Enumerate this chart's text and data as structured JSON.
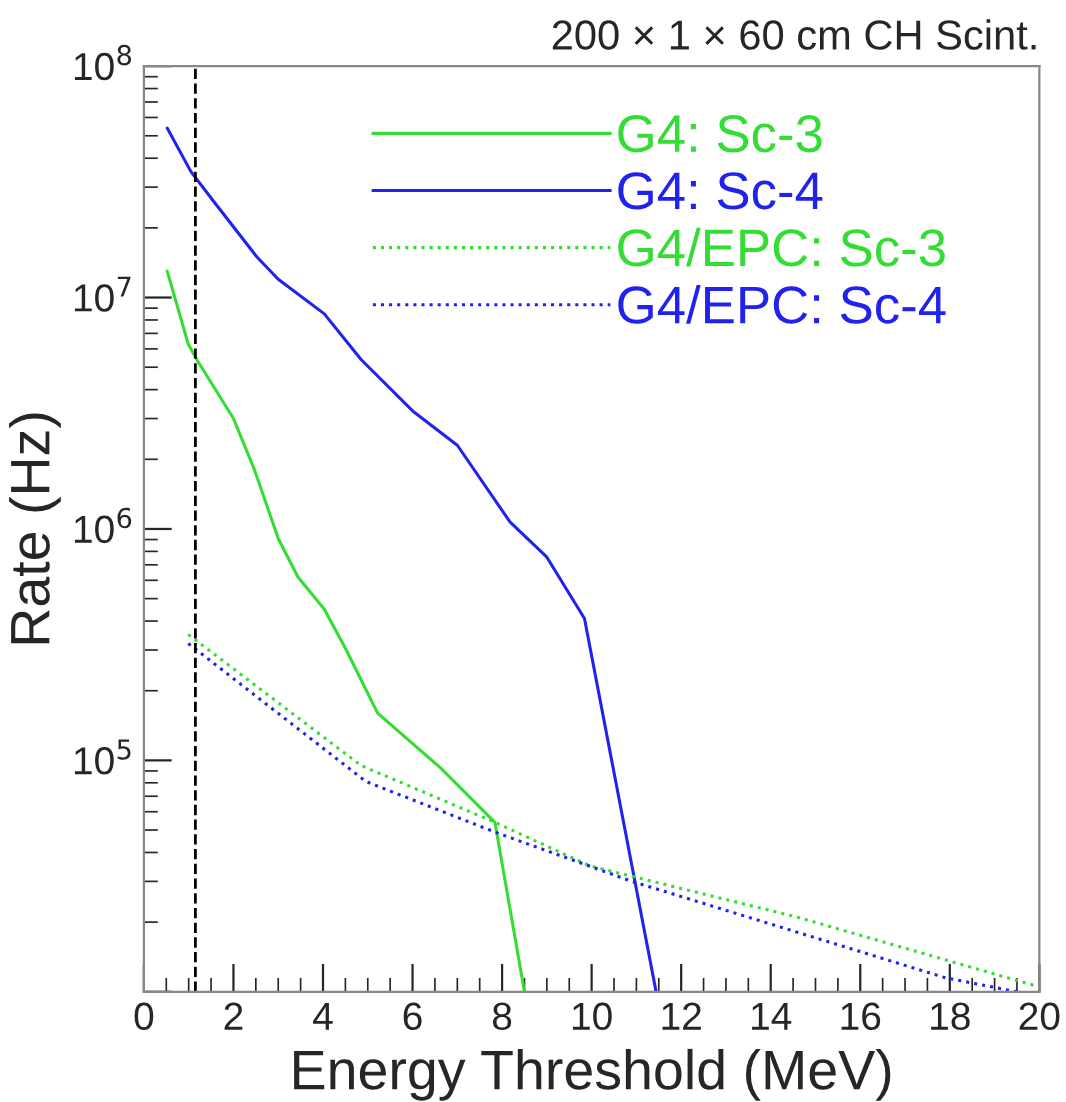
{
  "chart_data": {
    "type": "line",
    "title": "200 × 1 × 60 cm CH Scint.",
    "xlabel": "Energy Threshold (MeV)",
    "ylabel": "Rate (Hz)",
    "log": "y",
    "xlim": [
      0,
      20
    ],
    "ylim": [
      10000,
      100000000
    ],
    "xticks": [
      0,
      2,
      4,
      6,
      8,
      10,
      12,
      14,
      16,
      18,
      20
    ],
    "yticks": [
      {
        "value": 10000,
        "label": null
      },
      {
        "value": 100000,
        "label": "10$^{5}$"
      },
      {
        "value": 1000000,
        "label": "10$^{6}$"
      },
      {
        "value": 10000000,
        "label": "10$^{7}$"
      },
      {
        "value": 100000000,
        "label": "10$^{8}$"
      }
    ],
    "grid": false,
    "legend": "top right",
    "ref_lines": [
      {
        "axis": "x",
        "value": 1.15,
        "color": "#000000",
        "line_style": "dashed"
      }
    ],
    "series": [
      {
        "name": "G4: Sc-3",
        "color": "#33dd33",
        "line_style": "solid",
        "x": [
          0.52,
          0.99,
          1.18,
          2.0,
          2.47,
          3.0,
          3.44,
          4.03,
          4.52,
          5.22,
          6.62,
          7.84,
          8.5
        ],
        "values": [
          13000000,
          6300000,
          5400000,
          3000000,
          1800000,
          910000,
          620000,
          450000,
          300000,
          160000,
          93000,
          54000,
          10000
        ]
      },
      {
        "name": "G4: Sc-4",
        "color": "#2222ee",
        "line_style": "solid",
        "x": [
          0.52,
          1.05,
          1.56,
          2.52,
          3.0,
          4.03,
          4.85,
          6.03,
          7.0,
          8.18,
          8.99,
          9.84,
          11.44
        ],
        "values": [
          54000000,
          35000000,
          26000000,
          15000000,
          12000000,
          8500000,
          5400000,
          3200000,
          2300000,
          1070000,
          760000,
          410000,
          10000
        ]
      },
      {
        "name": "G4/EPC: Sc-3",
        "color": "#33dd33",
        "line_style": "dotted",
        "x": [
          0.99,
          4.85,
          7.84,
          9.96,
          14.6,
          20.0
        ],
        "values": [
          350000,
          95000,
          54000,
          35000,
          21000,
          10500
        ]
      },
      {
        "name": "G4/EPC: Sc-4",
        "color": "#2222ee",
        "line_style": "dotted",
        "x": [
          0.99,
          4.96,
          7.84,
          10.9,
          17.9,
          19.5
        ],
        "values": [
          320000,
          81000,
          49000,
          30000,
          11500,
          10000
        ]
      }
    ]
  }
}
